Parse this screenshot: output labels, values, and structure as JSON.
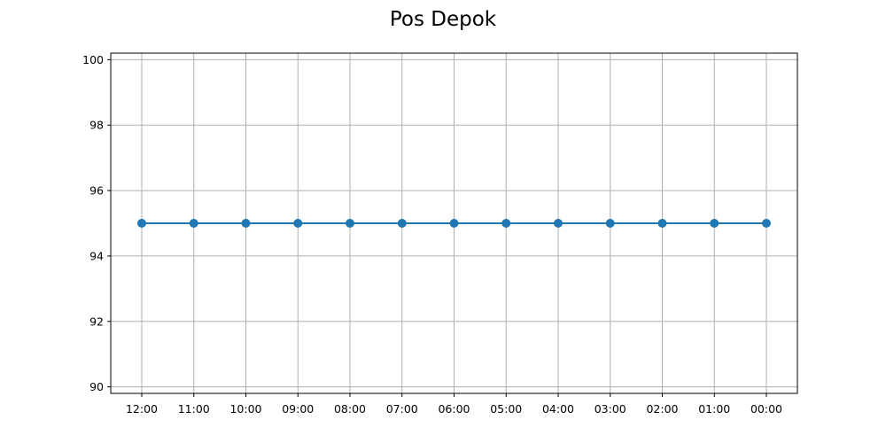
{
  "chart_data": {
    "type": "line",
    "title": "Pos Depok",
    "xlabel": "",
    "ylabel": "",
    "categories": [
      "12:00",
      "11:00",
      "10:00",
      "09:00",
      "08:00",
      "07:00",
      "06:00",
      "05:00",
      "04:00",
      "03:00",
      "02:00",
      "01:00",
      "00:00"
    ],
    "series": [
      {
        "values": [
          95,
          95,
          95,
          95,
          95,
          95,
          95,
          95,
          95,
          95,
          95,
          95,
          95
        ],
        "color": "#1f77b4",
        "marker": "circle"
      }
    ],
    "ylim": [
      89.8,
      100.2
    ],
    "yticks": [
      90,
      92,
      94,
      96,
      98,
      100
    ],
    "grid": true,
    "legend": "none"
  }
}
